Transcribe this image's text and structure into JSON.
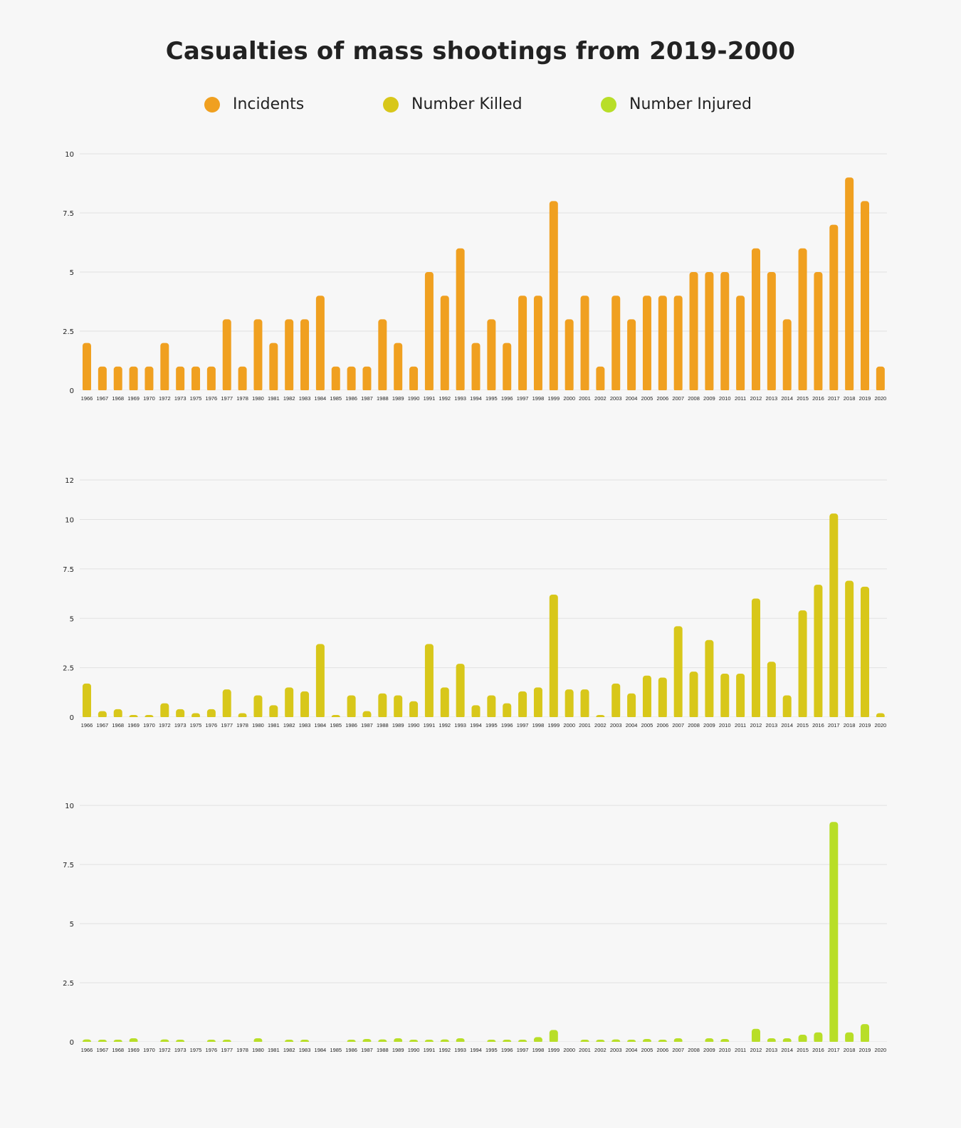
{
  "title": "Casualties of mass shootings from 2019-2000",
  "legend": [
    {
      "label": "Incidents",
      "color": "#f0a020"
    },
    {
      "label": "Number Killed",
      "color": "#d8c71a"
    },
    {
      "label": "Number Injured",
      "color": "#b8de28"
    }
  ],
  "chart_data": [
    {
      "type": "bar",
      "series_name": "Incidents",
      "color": "#f0a020",
      "ylim": [
        0,
        10
      ],
      "yticks": [
        "0",
        "2.5",
        "5",
        "7.5",
        "10"
      ],
      "ytick_values": [
        0,
        2.5,
        5,
        7.5,
        10
      ],
      "categories": [
        "1966",
        "1967",
        "1968",
        "1969",
        "1970",
        "1972",
        "1973",
        "1975",
        "1976",
        "1977",
        "1978",
        "1980",
        "1981",
        "1982",
        "1983",
        "1984",
        "1985",
        "1986",
        "1987",
        "1988",
        "1989",
        "1990",
        "1991",
        "1992",
        "1993",
        "1994",
        "1995",
        "1996",
        "1997",
        "1998",
        "1999",
        "2000",
        "2001",
        "2002",
        "2003",
        "2004",
        "2005",
        "2006",
        "2007",
        "2008",
        "2009",
        "2010",
        "2011",
        "2012",
        "2013",
        "2014",
        "2015",
        "2016",
        "2017",
        "2018",
        "2019",
        "2020"
      ],
      "values": [
        2,
        1,
        1,
        1,
        1,
        2,
        1,
        1,
        1,
        3,
        1,
        3,
        2,
        3,
        3,
        4,
        1,
        1,
        1,
        3,
        2,
        1,
        5,
        4,
        6,
        2,
        3,
        2,
        4,
        4,
        8,
        3,
        4,
        1,
        4,
        3,
        4,
        4,
        4,
        5,
        5,
        5,
        4,
        6,
        5,
        3,
        6,
        5,
        7,
        9,
        8,
        1
      ]
    },
    {
      "type": "bar",
      "series_name": "Number Killed",
      "color": "#d8c71a",
      "ylim": [
        0,
        12
      ],
      "yticks": [
        "0",
        "2.5",
        "5",
        "7.5",
        "10",
        "12"
      ],
      "ytick_values": [
        0,
        2.5,
        5,
        7.5,
        10,
        12
      ],
      "categories": [
        "1966",
        "1967",
        "1968",
        "1969",
        "1970",
        "1972",
        "1973",
        "1975",
        "1976",
        "1977",
        "1978",
        "1980",
        "1981",
        "1982",
        "1983",
        "1984",
        "1985",
        "1986",
        "1987",
        "1988",
        "1989",
        "1990",
        "1991",
        "1992",
        "1993",
        "1994",
        "1995",
        "1996",
        "1997",
        "1998",
        "1999",
        "2000",
        "2001",
        "2002",
        "2003",
        "2004",
        "2005",
        "2006",
        "2007",
        "2008",
        "2009",
        "2010",
        "2011",
        "2012",
        "2013",
        "2014",
        "2015",
        "2016",
        "2017",
        "2018",
        "2019",
        "2020"
      ],
      "values": [
        1.7,
        0.3,
        0.4,
        0.1,
        0.1,
        0.7,
        0.4,
        0.2,
        0.4,
        1.4,
        0.2,
        1.1,
        0.6,
        1.5,
        1.3,
        3.7,
        0.1,
        1.1,
        0.3,
        1.2,
        1.1,
        0.8,
        3.7,
        1.5,
        2.7,
        0.6,
        1.1,
        0.7,
        1.3,
        1.5,
        6.2,
        1.4,
        1.4,
        0.1,
        1.7,
        1.2,
        2.1,
        2.0,
        4.6,
        2.3,
        3.9,
        2.2,
        2.2,
        6.0,
        2.8,
        1.1,
        5.4,
        6.7,
        10.3,
        6.9,
        6.6,
        0.2
      ]
    },
    {
      "type": "bar",
      "series_name": "Number Injured",
      "color": "#b8de28",
      "ylim": [
        0,
        10
      ],
      "yticks": [
        "0",
        "2.5",
        "5",
        "7.5",
        "10"
      ],
      "ytick_values": [
        0,
        2.5,
        5,
        7.5,
        10
      ],
      "categories": [
        "1966",
        "1967",
        "1968",
        "1969",
        "1970",
        "1972",
        "1973",
        "1975",
        "1976",
        "1977",
        "1978",
        "1980",
        "1981",
        "1982",
        "1983",
        "1984",
        "1985",
        "1986",
        "1987",
        "1988",
        "1989",
        "1990",
        "1991",
        "1992",
        "1993",
        "1994",
        "1995",
        "1996",
        "1997",
        "1998",
        "1999",
        "2000",
        "2001",
        "2002",
        "2003",
        "2004",
        "2005",
        "2006",
        "2007",
        "2008",
        "2009",
        "2010",
        "2011",
        "2012",
        "2013",
        "2014",
        "2015",
        "2016",
        "2017",
        "2018",
        "2019",
        "2020"
      ],
      "values": [
        0.1,
        0.05,
        0.02,
        0.15,
        0.0,
        0.1,
        0.08,
        0.0,
        0.03,
        0.06,
        0.0,
        0.15,
        0.0,
        0.06,
        0.03,
        0.0,
        0.0,
        0.05,
        0.12,
        0.1,
        0.15,
        0.05,
        0.05,
        0.1,
        0.15,
        0.0,
        0.03,
        0.05,
        0.08,
        0.2,
        0.5,
        0.0,
        0.08,
        0.05,
        0.1,
        0.05,
        0.12,
        0.08,
        0.15,
        0.0,
        0.15,
        0.12,
        0.0,
        0.55,
        0.15,
        0.15,
        0.3,
        0.4,
        9.3,
        0.4,
        0.75,
        0.0
      ]
    }
  ]
}
